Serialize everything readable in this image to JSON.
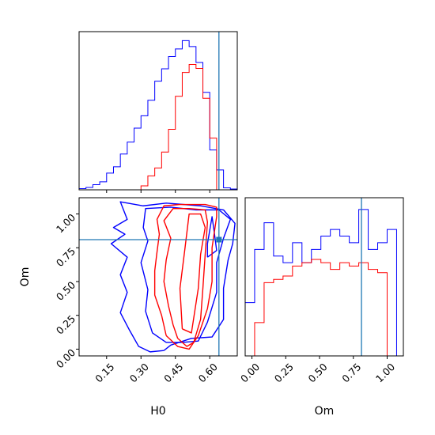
{
  "chart_data": {
    "type": "corner",
    "parameters": [
      "H0",
      "Om"
    ],
    "truth": {
      "H0": 0.64,
      "Om": 0.81
    },
    "truth_color": "#1f77b4",
    "series": [
      {
        "color": "#0000ff",
        "hist_H0": {
          "bin_edges": [
            0.03,
            0.06,
            0.09,
            0.12,
            0.15,
            0.18,
            0.21,
            0.24,
            0.27,
            0.3,
            0.33,
            0.36,
            0.39,
            0.42,
            0.45,
            0.48,
            0.51,
            0.54,
            0.57,
            0.6,
            0.63,
            0.66,
            0.69,
            0.72
          ],
          "counts": [
            0.3,
            0.6,
            1.3,
            2.0,
            4.2,
            5.8,
            9.0,
            12.0,
            15.5,
            18.6,
            22.5,
            27.3,
            30.4,
            33.5,
            35.4,
            37.5,
            36.0,
            32.0,
            24.5,
            10.0,
            5.0,
            0.5,
            0.2
          ]
        },
        "hist_Om": {
          "bin_edges": [
            -0.05,
            0.02,
            0.09,
            0.16,
            0.23,
            0.3,
            0.37,
            0.44,
            0.51,
            0.58,
            0.65,
            0.72,
            0.79,
            0.86,
            0.93,
            1.0,
            1.07
          ],
          "counts": [
            8.0,
            16.0,
            20.0,
            15.0,
            14.0,
            17.0,
            14.0,
            16.0,
            18.0,
            19.0,
            18.0,
            17.0,
            22.0,
            16.0,
            17.0,
            19.0
          ]
        },
        "contours_H0_Om": [
          [
            [
              0.4,
              -0.01
            ],
            [
              0.43,
              0.03
            ],
            [
              0.52,
              0.08
            ],
            [
              0.61,
              0.09
            ],
            [
              0.66,
              0.22
            ],
            [
              0.66,
              0.45
            ],
            [
              0.68,
              0.66
            ],
            [
              0.7,
              0.78
            ],
            [
              0.71,
              0.93
            ],
            [
              0.66,
              1.03
            ],
            [
              0.56,
              1.06
            ],
            [
              0.41,
              1.08
            ],
            [
              0.31,
              1.06
            ],
            [
              0.21,
              1.09
            ],
            [
              0.24,
              0.96
            ],
            [
              0.18,
              0.9
            ],
            [
              0.23,
              0.85
            ],
            [
              0.17,
              0.78
            ],
            [
              0.24,
              0.68
            ],
            [
              0.21,
              0.55
            ],
            [
              0.24,
              0.42
            ],
            [
              0.21,
              0.27
            ],
            [
              0.25,
              0.14
            ],
            [
              0.29,
              0.02
            ],
            [
              0.34,
              -0.02
            ],
            [
              0.4,
              -0.01
            ]
          ],
          [
            [
              0.48,
              0.05
            ],
            [
              0.55,
              0.06
            ],
            [
              0.59,
              0.2
            ],
            [
              0.63,
              0.42
            ],
            [
              0.63,
              0.64
            ],
            [
              0.66,
              0.82
            ],
            [
              0.69,
              0.96
            ],
            [
              0.64,
              1.03
            ],
            [
              0.54,
              1.03
            ],
            [
              0.43,
              1.05
            ],
            [
              0.32,
              1.04
            ],
            [
              0.31,
              0.9
            ],
            [
              0.33,
              0.8
            ],
            [
              0.3,
              0.64
            ],
            [
              0.33,
              0.44
            ],
            [
              0.32,
              0.28
            ],
            [
              0.35,
              0.12
            ],
            [
              0.41,
              0.05
            ],
            [
              0.48,
              0.05
            ]
          ],
          [
            [
              0.59,
              0.68
            ],
            [
              0.63,
              0.73
            ],
            [
              0.62,
              0.86
            ],
            [
              0.61,
              0.98
            ],
            [
              0.59,
              0.78
            ],
            [
              0.59,
              0.68
            ]
          ]
        ]
      },
      {
        "color": "#ff0000",
        "hist_H0": {
          "bin_edges": [
            0.3,
            0.33,
            0.36,
            0.39,
            0.42,
            0.45,
            0.48,
            0.51,
            0.54,
            0.57,
            0.6,
            0.63
          ],
          "counts": [
            1.0,
            3.5,
            5.5,
            9.5,
            15.2,
            23.5,
            29.5,
            31.5,
            30.5,
            23.0,
            13.0
          ]
        },
        "hist_Om": {
          "bin_edges": [
            0.02,
            0.09,
            0.16,
            0.23,
            0.3,
            0.37,
            0.44,
            0.51,
            0.58,
            0.65,
            0.72,
            0.79,
            0.86,
            0.93,
            1.0
          ],
          "counts": [
            5.0,
            11.0,
            11.5,
            12.0,
            13.5,
            14.0,
            14.5,
            14.0,
            13.0,
            14.0,
            13.5,
            14.0,
            13.0,
            12.5
          ]
        },
        "contours_H0_Om": [
          [
            [
              0.41,
              0.1
            ],
            [
              0.46,
              0.02
            ],
            [
              0.51,
              0.0
            ],
            [
              0.55,
              0.1
            ],
            [
              0.59,
              0.3
            ],
            [
              0.61,
              0.5
            ],
            [
              0.61,
              0.75
            ],
            [
              0.63,
              0.98
            ],
            [
              0.63,
              1.05
            ],
            [
              0.58,
              1.07
            ],
            [
              0.47,
              1.07
            ],
            [
              0.4,
              1.06
            ],
            [
              0.37,
              0.96
            ],
            [
              0.38,
              0.85
            ],
            [
              0.37,
              0.72
            ],
            [
              0.36,
              0.58
            ],
            [
              0.36,
              0.4
            ],
            [
              0.39,
              0.25
            ],
            [
              0.41,
              0.1
            ]
          ],
          [
            [
              0.46,
              0.08
            ],
            [
              0.5,
              0.02
            ],
            [
              0.53,
              0.05
            ],
            [
              0.56,
              0.22
            ],
            [
              0.57,
              0.45
            ],
            [
              0.58,
              0.7
            ],
            [
              0.59,
              0.94
            ],
            [
              0.58,
              1.03
            ],
            [
              0.51,
              1.04
            ],
            [
              0.44,
              1.04
            ],
            [
              0.4,
              0.95
            ],
            [
              0.43,
              0.82
            ],
            [
              0.41,
              0.66
            ],
            [
              0.4,
              0.5
            ],
            [
              0.42,
              0.32
            ],
            [
              0.44,
              0.18
            ],
            [
              0.46,
              0.08
            ]
          ],
          [
            [
              0.48,
              0.15
            ],
            [
              0.52,
              0.12
            ],
            [
              0.55,
              0.45
            ],
            [
              0.56,
              0.7
            ],
            [
              0.58,
              0.9
            ],
            [
              0.56,
              1.0
            ],
            [
              0.51,
              1.0
            ],
            [
              0.49,
              0.72
            ],
            [
              0.47,
              0.45
            ],
            [
              0.48,
              0.15
            ]
          ]
        ]
      }
    ],
    "axes": {
      "H0": {
        "label": "H0",
        "lim": [
          0.03,
          0.72
        ],
        "ticks": [
          0.15,
          0.3,
          0.45,
          0.6
        ],
        "tick_labels": [
          "0.15",
          "0.30",
          "0.45",
          "0.60"
        ]
      },
      "Om": {
        "label": "Om",
        "lim": [
          -0.05,
          1.12
        ],
        "ticks": [
          0.0,
          0.25,
          0.5,
          0.75,
          1.0
        ],
        "tick_labels": [
          "0.00",
          "0.25",
          "0.50",
          "0.75",
          "1.00"
        ]
      }
    },
    "grid": false,
    "legend": "none"
  }
}
